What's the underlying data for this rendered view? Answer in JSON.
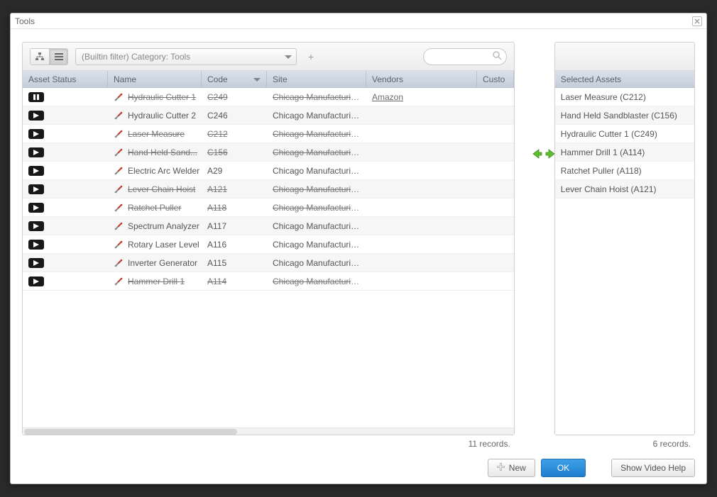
{
  "window": {
    "title": "Tools"
  },
  "filter": {
    "label": "(Builtin filter) Category: Tools"
  },
  "columns": {
    "status": "Asset Status",
    "name": "Name",
    "code": "Code",
    "site": "Site",
    "vendors": "Vendors",
    "custom": "Custo"
  },
  "rows": [
    {
      "status": "pause",
      "name": "Hydraulic Cutter 1",
      "code": "C249",
      "site": "Chicago Manufacturing Ce...",
      "vendor": "Amazon",
      "strike": true,
      "link_vendor": true
    },
    {
      "status": "play",
      "name": "Hydraulic Cutter 2",
      "code": "C246",
      "site": "Chicago Manufacturing Ce...",
      "vendor": "",
      "strike": false
    },
    {
      "status": "play",
      "name": "Laser Measure",
      "code": "C212",
      "site": "Chicago Manufacturing Ce...",
      "vendor": "",
      "strike": true
    },
    {
      "status": "play",
      "name": "Hand Held Sand...",
      "code": "C156",
      "site": "Chicago Manufacturing Ce...",
      "vendor": "",
      "strike": true
    },
    {
      "status": "play",
      "name": "Electric Arc Welder",
      "code": "A29",
      "site": "Chicago Manufacturing Ce...",
      "vendor": "",
      "strike": false
    },
    {
      "status": "play",
      "name": "Lever Chain Hoist",
      "code": "A121",
      "site": "Chicago Manufacturing Ce...",
      "vendor": "",
      "strike": true
    },
    {
      "status": "play",
      "name": "Ratchet Puller",
      "code": "A118",
      "site": "Chicago Manufacturing Ce...",
      "vendor": "",
      "strike": true
    },
    {
      "status": "play",
      "name": "Spectrum Analyzer",
      "code": "A117",
      "site": "Chicago Manufacturing Ce...",
      "vendor": "",
      "strike": false
    },
    {
      "status": "play",
      "name": "Rotary Laser Level",
      "code": "A116",
      "site": "Chicago Manufacturing Ce...",
      "vendor": "",
      "strike": false
    },
    {
      "status": "play",
      "name": "Inverter Generator",
      "code": "A115",
      "site": "Chicago Manufacturing Ce...",
      "vendor": "",
      "strike": false
    },
    {
      "status": "play",
      "name": "Hammer Drill 1",
      "code": "A114",
      "site": "Chicago Manufacturing Ce...",
      "vendor": "",
      "strike": true
    }
  ],
  "left_footer": "11 records.",
  "selected_header": "Selected Assets",
  "selected": [
    "Laser Measure (C212)",
    "Hand Held Sandblaster (C156)",
    "Hydraulic Cutter 1 (C249)",
    "Hammer Drill 1 (A114)",
    "Ratchet Puller (A118)",
    "Lever Chain Hoist (A121)"
  ],
  "right_footer": "6 records.",
  "buttons": {
    "new": "New",
    "ok": "OK",
    "help": "Show Video Help"
  },
  "colors": {
    "header_grad_top": "#dbe1ea",
    "header_grad_bot": "#c4cedb",
    "row_alt": "#f6f6f6",
    "primary_top": "#3ea0e8",
    "primary_bot": "#1f7fd0",
    "arrow_green": "#5fbf2e",
    "tool_red": "#c0392b"
  }
}
